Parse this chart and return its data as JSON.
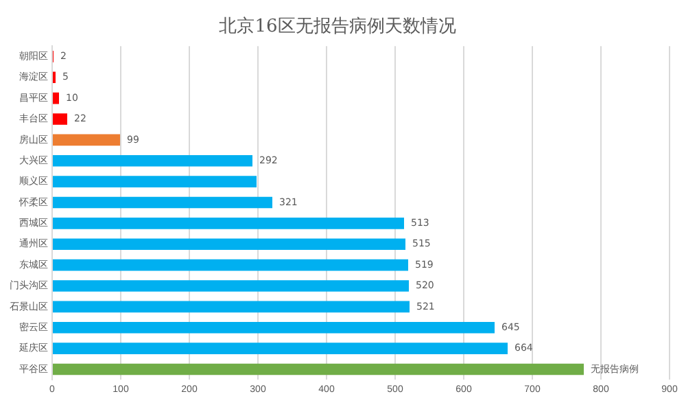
{
  "chart_data": {
    "type": "bar",
    "orientation": "horizontal",
    "title": "北京16区无报告病例天数情况",
    "categories": [
      "朝阳区",
      "海淀区",
      "昌平区",
      "丰台区",
      "房山区",
      "大兴区",
      "顺义区",
      "怀柔区",
      "西城区",
      "通州区",
      "东城区",
      "门头沟区",
      "石景山区",
      "密云区",
      "延庆区",
      "平谷区"
    ],
    "values": [
      2,
      5,
      10,
      22,
      99,
      292,
      298,
      321,
      513,
      515,
      519,
      520,
      521,
      645,
      664,
      775
    ],
    "value_labels": [
      "2",
      "5",
      "10",
      "22",
      "99",
      "292",
      null,
      "321",
      "513",
      "515",
      "519",
      "520",
      "521",
      "645",
      "664",
      "无报告病例"
    ],
    "colors": [
      "#ff0000",
      "#ff0000",
      "#ff0000",
      "#ff0000",
      "#ed7d31",
      "#00b0f0",
      "#00b0f0",
      "#00b0f0",
      "#00b0f0",
      "#00b0f0",
      "#00b0f0",
      "#00b0f0",
      "#00b0f0",
      "#00b0f0",
      "#00b0f0",
      "#70ad47"
    ],
    "xlim": [
      0,
      900
    ],
    "xticks": [
      0,
      100,
      200,
      300,
      400,
      500,
      600,
      700,
      800,
      900
    ],
    "grid": "x",
    "legend": false
  }
}
